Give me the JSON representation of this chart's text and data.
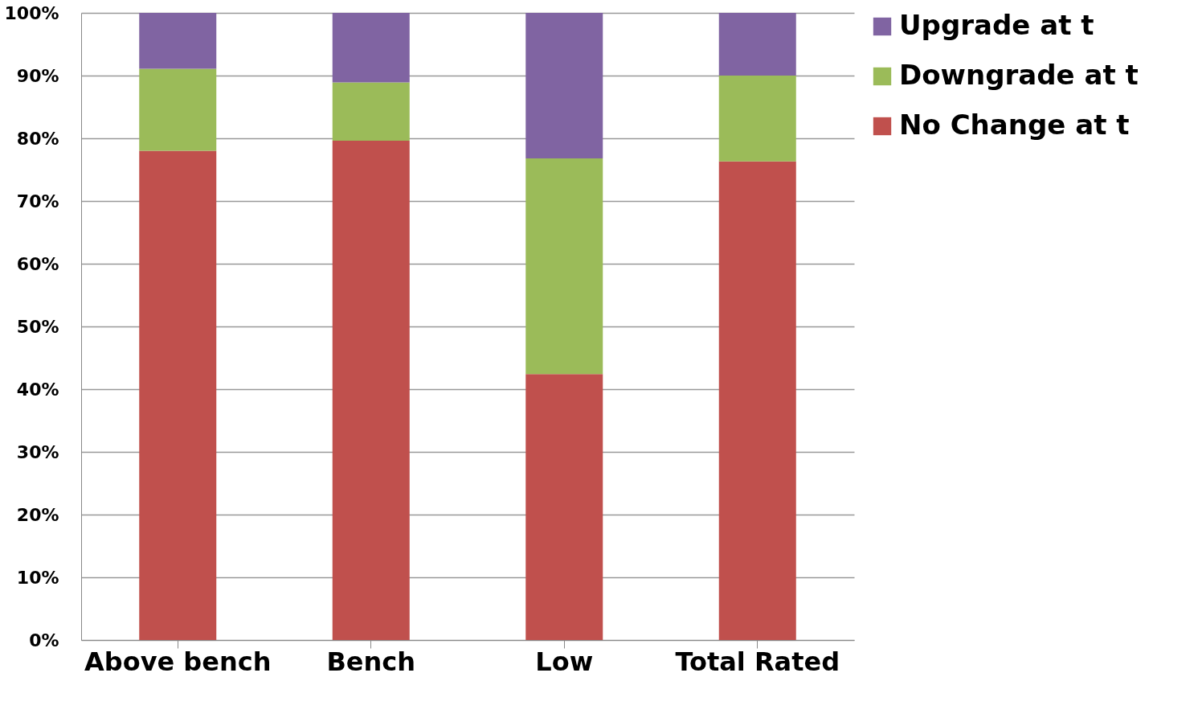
{
  "chart_data": {
    "type": "bar",
    "stacked": true,
    "categories": [
      "Above bench",
      "Bench",
      "Low",
      "Total Rated"
    ],
    "series": [
      {
        "name": "No Change at t",
        "color": "#c0504d",
        "values": [
          78.0,
          79.6,
          42.4,
          76.3
        ]
      },
      {
        "name": "Downgrade at t",
        "color": "#9bbb59",
        "values": [
          13.1,
          9.3,
          34.4,
          13.7
        ]
      },
      {
        "name": "Upgrade at t",
        "color": "#8064a2",
        "values": [
          8.9,
          11.1,
          23.2,
          10.0
        ]
      }
    ],
    "ylim": [
      0,
      100
    ],
    "yticks": [
      {
        "value": 0,
        "label": "0%"
      },
      {
        "value": 10,
        "label": "10%"
      },
      {
        "value": 20,
        "label": "20%"
      },
      {
        "value": 30,
        "label": "30%"
      },
      {
        "value": 40,
        "label": "40%"
      },
      {
        "value": 50,
        "label": "50%"
      },
      {
        "value": 60,
        "label": "60%"
      },
      {
        "value": 70,
        "label": "70%"
      },
      {
        "value": 80,
        "label": "80%"
      },
      {
        "value": 90,
        "label": "90%"
      },
      {
        "value": 100,
        "label": "100%"
      }
    ],
    "grid": "y",
    "legend": "right"
  }
}
